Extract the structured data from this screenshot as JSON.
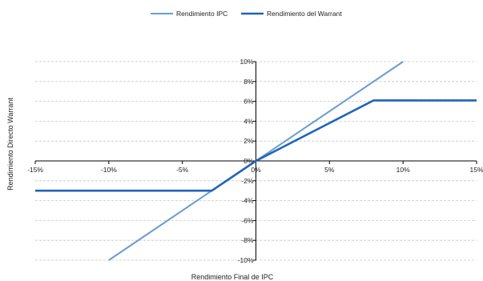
{
  "chart_data": {
    "type": "line",
    "title": "",
    "xlabel": "Rendimiento Final de IPC",
    "ylabel": "Rendimiento Directo Warrant",
    "xlim": [
      -15,
      15
    ],
    "ylim": [
      -10,
      10
    ],
    "xticks": [
      -15,
      -10,
      -5,
      0,
      5,
      10,
      15
    ],
    "yticks": [
      -10,
      -8,
      -6,
      -4,
      -2,
      0,
      2,
      4,
      6,
      8,
      10
    ],
    "xtick_labels": [
      "-15%",
      "-10%",
      "-5%",
      "0%",
      "5%",
      "10%",
      "15%"
    ],
    "ytick_labels": [
      "-10%",
      "-8%",
      "-6%",
      "-4%",
      "-2%",
      "0%",
      "2%",
      "4%",
      "6%",
      "8%",
      "10%"
    ],
    "grid": true,
    "legend_position": "top-center",
    "series": [
      {
        "name": "Rendimiento IPC",
        "color": "#6a9bd1",
        "x": [
          -10,
          10
        ],
        "y": [
          -10,
          10
        ]
      },
      {
        "name": "Rendimiento del Warrant",
        "color": "#1f64b8",
        "x": [
          -15,
          -3,
          0,
          8,
          15
        ],
        "y": [
          -3,
          -3,
          0,
          6.1,
          6.1
        ]
      }
    ]
  }
}
